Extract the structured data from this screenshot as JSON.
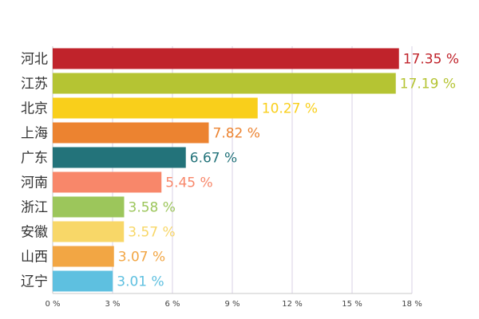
{
  "chart_data": {
    "type": "bar",
    "orientation": "horizontal",
    "categories": [
      "河北",
      "江苏",
      "北京",
      "上海",
      "广东",
      "河南",
      "浙江",
      "安徽",
      "山西",
      "辽宁"
    ],
    "values": [
      17.35,
      17.19,
      10.27,
      7.82,
      6.67,
      5.45,
      3.58,
      3.57,
      3.07,
      3.01
    ],
    "value_labels": [
      "17.35 %",
      "17.19 %",
      "10.27 %",
      "7.82 %",
      "6.67 %",
      "5.45 %",
      "3.58 %",
      "3.57 %",
      "3.07 %",
      "3.01 %"
    ],
    "colors": [
      "#c0232b",
      "#b5c433",
      "#f9cf1b",
      "#ec8330",
      "#23737a",
      "#f8876a",
      "#9cc65b",
      "#f8d768",
      "#f2a644",
      "#5ec0e0"
    ],
    "xlim": [
      0,
      18
    ],
    "xticks": [
      0,
      3,
      6,
      9,
      12,
      15,
      18
    ],
    "xtick_labels": [
      "0 %",
      "3 %",
      "6 %",
      "9 %",
      "12 %",
      "15 %",
      "18 %"
    ],
    "grid": true,
    "title": "",
    "xlabel": "",
    "ylabel": ""
  }
}
